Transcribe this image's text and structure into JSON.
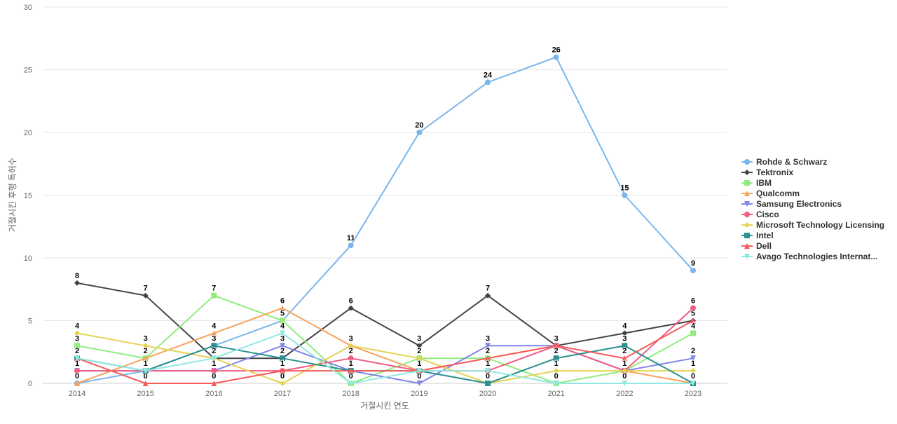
{
  "chart_data": {
    "type": "line",
    "xlabel": "거절시킨 연도",
    "ylabel": "거절시킨 후행 특허수",
    "ylim": [
      0,
      30
    ],
    "yticks": [
      0,
      5,
      10,
      15,
      20,
      25,
      30
    ],
    "categories": [
      "2014",
      "2015",
      "2016",
      "2017",
      "2018",
      "2019",
      "2020",
      "2021",
      "2022",
      "2023"
    ],
    "grid": true,
    "legend_position": "right",
    "series": [
      {
        "name": "Rohde & Schwarz",
        "color": "#7cb5ec",
        "marker": "circle",
        "values": [
          0,
          1,
          3,
          5,
          11,
          20,
          24,
          26,
          15,
          9
        ]
      },
      {
        "name": "Tektronix",
        "color": "#434348",
        "marker": "diamond",
        "values": [
          8,
          7,
          2,
          2,
          6,
          3,
          7,
          3,
          4,
          5
        ]
      },
      {
        "name": "IBM",
        "color": "#90ed7d",
        "marker": "square",
        "values": [
          3,
          2,
          7,
          5,
          0,
          2,
          2,
          0,
          1,
          4
        ]
      },
      {
        "name": "Qualcomm",
        "color": "#f7a35c",
        "marker": "triangle",
        "values": [
          0,
          2,
          4,
          6,
          3,
          1,
          2,
          3,
          1,
          0
        ]
      },
      {
        "name": "Samsung Electronics",
        "color": "#8085e9",
        "marker": "triangle-down",
        "values": [
          1,
          1,
          1,
          3,
          1,
          0,
          3,
          3,
          1,
          2
        ]
      },
      {
        "name": "Cisco",
        "color": "#f15c80",
        "marker": "circle",
        "values": [
          1,
          1,
          1,
          1,
          2,
          1,
          1,
          3,
          1,
          6
        ]
      },
      {
        "name": "Microsoft Technology Licensing",
        "color": "#e4d354",
        "marker": "diamond",
        "values": [
          4,
          3,
          2,
          0,
          3,
          2,
          0,
          1,
          1,
          1
        ]
      },
      {
        "name": "Intel",
        "color": "#2b908f",
        "marker": "square",
        "values": [
          2,
          1,
          3,
          2,
          1,
          1,
          0,
          2,
          3,
          0
        ]
      },
      {
        "name": "Dell",
        "color": "#f45b5b",
        "marker": "triangle",
        "values": [
          2,
          0,
          0,
          1,
          1,
          1,
          2,
          3,
          2,
          5
        ]
      },
      {
        "name": "Avago Technologies Internat...",
        "color": "#91e8e1",
        "marker": "triangle-down",
        "values": [
          2,
          1,
          2,
          4,
          0,
          1,
          1,
          0,
          0,
          0
        ]
      }
    ],
    "data_labels": [
      {
        "x": "2014",
        "values": [
          8,
          4,
          3,
          2,
          1,
          0
        ]
      },
      {
        "x": "2015",
        "values": [
          7,
          3,
          2,
          1,
          0
        ]
      },
      {
        "x": "2016",
        "values": [
          7,
          4,
          3,
          2,
          1,
          0
        ]
      },
      {
        "x": "2017",
        "values": [
          6,
          5,
          4,
          3,
          2,
          1,
          0
        ]
      },
      {
        "x": "2018",
        "values": [
          11,
          6,
          3,
          2,
          1,
          0
        ]
      },
      {
        "x": "2019",
        "values": [
          20,
          3,
          2,
          1,
          0
        ]
      },
      {
        "x": "2020",
        "values": [
          24,
          7,
          3,
          2,
          1,
          0
        ]
      },
      {
        "x": "2021",
        "values": [
          26,
          3,
          2,
          1,
          0
        ]
      },
      {
        "x": "2022",
        "values": [
          15,
          4,
          3,
          2,
          1,
          0
        ]
      },
      {
        "x": "2023",
        "values": [
          9,
          6,
          5,
          4,
          2,
          1,
          0
        ]
      }
    ]
  }
}
